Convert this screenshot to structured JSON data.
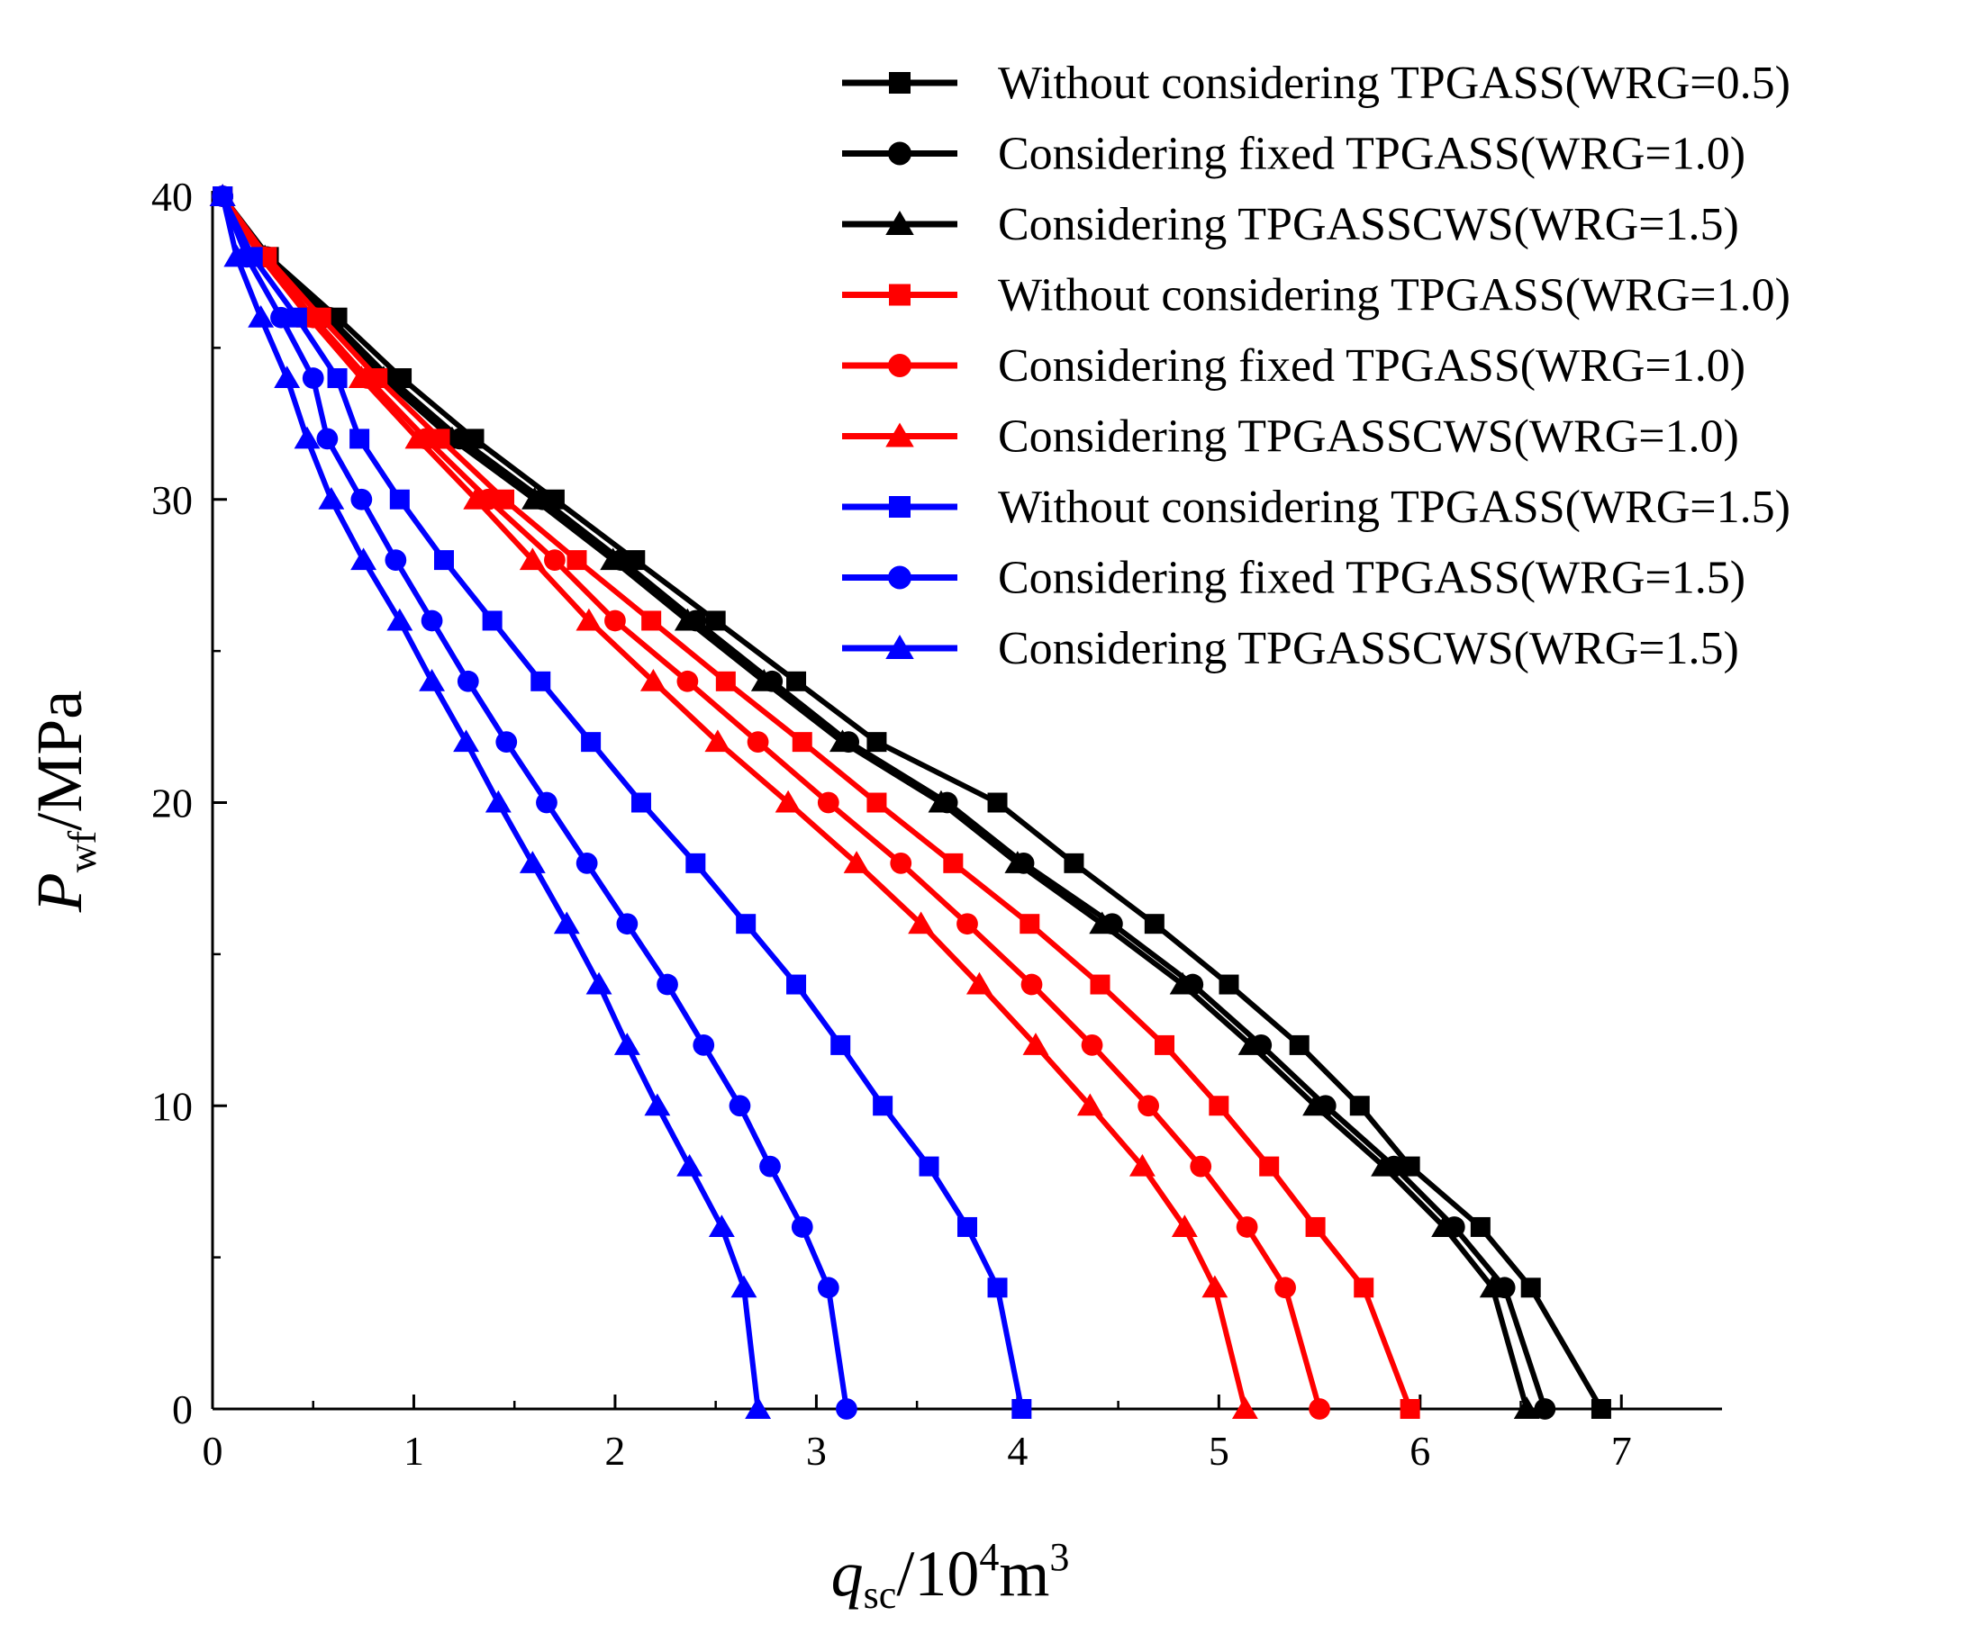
{
  "chart_data": {
    "type": "line",
    "title": "",
    "xlabel": {
      "main": "q",
      "sub": "sc",
      "unit_prefix": "/10",
      "sup": "4",
      "unit_mid": "m",
      "unit_sup": "3"
    },
    "ylabel": {
      "main": "P",
      "sub": "wf",
      "unit": "/MPa"
    },
    "xlim": [
      0,
      7.5
    ],
    "ylim": [
      0,
      40
    ],
    "xticks": [
      "0",
      "1",
      "2",
      "3",
      "4",
      "5",
      "6",
      "7"
    ],
    "yticks": [
      "0",
      "10",
      "20",
      "30",
      "40"
    ],
    "grid": false,
    "legend_position": "top-right",
    "y": [
      40,
      38,
      36,
      34,
      32,
      30,
      28,
      26,
      24,
      22,
      20,
      18,
      16,
      14,
      12,
      10,
      8,
      6,
      4,
      0
    ],
    "series": [
      {
        "name": "Without considering TPGASS(WRG=0.5)",
        "color": "#000000",
        "marker": "square",
        "x": [
          0.05,
          0.28,
          0.62,
          0.94,
          1.3,
          1.7,
          2.1,
          2.5,
          2.9,
          3.3,
          3.9,
          4.28,
          4.68,
          5.05,
          5.4,
          5.7,
          5.95,
          6.3,
          6.55,
          6.9
        ]
      },
      {
        "name": "Considering fixed TPGASS(WRG=1.0)",
        "color": "#000000",
        "marker": "circle",
        "x": [
          0.05,
          0.27,
          0.58,
          0.88,
          1.23,
          1.64,
          2.03,
          2.4,
          2.78,
          3.16,
          3.65,
          4.03,
          4.47,
          4.87,
          5.21,
          5.53,
          5.87,
          6.17,
          6.42,
          6.62
        ]
      },
      {
        "name": "Considering TPGASSCWS(WRG=1.5)",
        "color": "#000000",
        "marker": "triangle",
        "x": [
          0.05,
          0.26,
          0.56,
          0.85,
          1.19,
          1.6,
          1.99,
          2.36,
          2.74,
          3.13,
          3.62,
          4.0,
          4.42,
          4.82,
          5.16,
          5.48,
          5.82,
          6.12,
          6.36,
          6.53
        ]
      },
      {
        "name": "Without considering TPGASS(WRG=1.0)",
        "color": "#ff0000",
        "marker": "square",
        "x": [
          0.05,
          0.27,
          0.54,
          0.82,
          1.13,
          1.45,
          1.81,
          2.18,
          2.55,
          2.93,
          3.3,
          3.68,
          4.06,
          4.41,
          4.73,
          5.0,
          5.25,
          5.48,
          5.72,
          5.95
        ]
      },
      {
        "name": "Considering fixed TPGASS(WRG=1.0)",
        "color": "#ff0000",
        "marker": "circle",
        "x": [
          0.05,
          0.25,
          0.5,
          0.77,
          1.06,
          1.37,
          1.7,
          2.0,
          2.36,
          2.71,
          3.06,
          3.42,
          3.75,
          4.07,
          4.37,
          4.65,
          4.91,
          5.14,
          5.33,
          5.5
        ]
      },
      {
        "name": "Considering TPGASSCWS(WRG=1.0)",
        "color": "#ff0000",
        "marker": "triangle",
        "x": [
          0.05,
          0.24,
          0.48,
          0.74,
          1.02,
          1.31,
          1.59,
          1.87,
          2.19,
          2.51,
          2.86,
          3.2,
          3.52,
          3.81,
          4.09,
          4.36,
          4.62,
          4.83,
          4.98,
          5.13
        ]
      },
      {
        "name": "Without considering TPGASS(WRG=1.5)",
        "color": "#0000ff",
        "marker": "square",
        "x": [
          0.05,
          0.2,
          0.42,
          0.62,
          0.73,
          0.93,
          1.15,
          1.39,
          1.63,
          1.88,
          2.13,
          2.4,
          2.65,
          2.9,
          3.12,
          3.33,
          3.56,
          3.75,
          3.9,
          4.02
        ]
      },
      {
        "name": "Considering fixed TPGASS(WRG=1.5)",
        "color": "#0000ff",
        "marker": "circle",
        "x": [
          0.05,
          0.17,
          0.34,
          0.5,
          0.57,
          0.74,
          0.91,
          1.09,
          1.27,
          1.46,
          1.66,
          1.86,
          2.06,
          2.26,
          2.44,
          2.62,
          2.77,
          2.93,
          3.06,
          3.15
        ]
      },
      {
        "name": "Considering TPGASSCWS(WRG=1.5)",
        "color": "#0000ff",
        "marker": "triangle",
        "x": [
          0.05,
          0.12,
          0.24,
          0.37,
          0.47,
          0.59,
          0.75,
          0.93,
          1.09,
          1.26,
          1.42,
          1.59,
          1.76,
          1.92,
          2.06,
          2.21,
          2.37,
          2.53,
          2.64,
          2.71
        ]
      }
    ]
  }
}
